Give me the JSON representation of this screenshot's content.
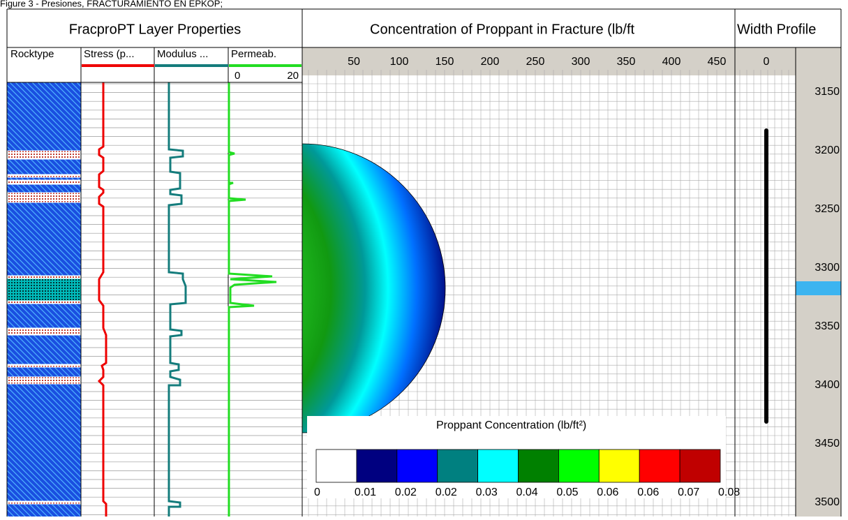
{
  "caption": "Figure 3 - Presiones, FRACTURAMIENTO EN EPKOP;",
  "layer_panel": {
    "title": "FracproPT Layer Properties",
    "columns": [
      "Rocktype",
      "Stress (p...",
      "Modulus ...",
      "Permeab."
    ],
    "perm_ticks": [
      "0",
      "20"
    ]
  },
  "fracture_panel": {
    "title": "Concentration of Proppant in Fracture (lb/ft",
    "x_ticks": [
      "50",
      "100",
      "150",
      "200",
      "250",
      "300",
      "350",
      "400",
      "450"
    ],
    "colorbar": {
      "title": "Proppant Concentration (lb/ft²)",
      "labels": [
        "0",
        "0.01",
        "0.02",
        "0.02",
        "0.03",
        "0.04",
        "0.05",
        "0.06",
        "0.06",
        "0.07",
        "0.08"
      ]
    }
  },
  "width_panel": {
    "title": "Width Profile",
    "x_ticks": [
      "0"
    ]
  },
  "depth_ticks": [
    "3150",
    "3200",
    "3250",
    "3300",
    "3350",
    "3400",
    "3450",
    "3500"
  ]
}
